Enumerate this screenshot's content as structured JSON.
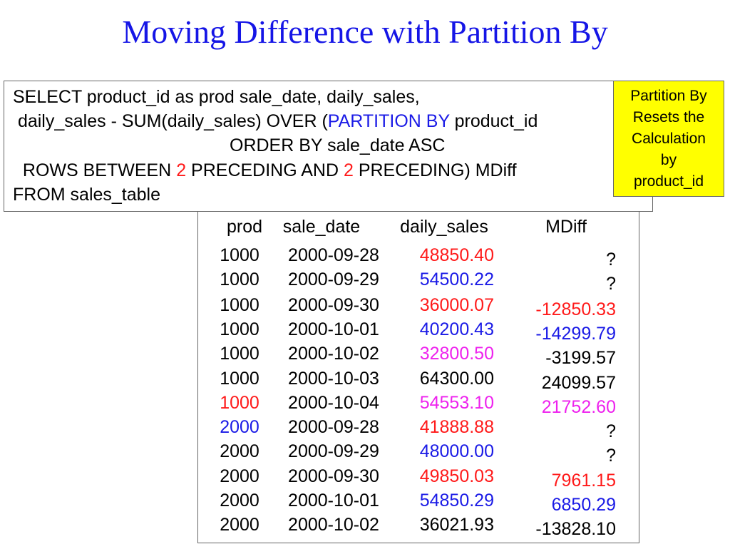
{
  "title": "Moving Difference with Partition By",
  "sql": {
    "line1": "SELECT product_id as prod sale_date, daily_sales,",
    "line2_a": " daily_sales - SUM(daily_sales) OVER (",
    "line2_b": "PARTITION BY",
    "line2_c": " product_id",
    "line3": "ORDER BY sale_date ASC",
    "line4_a": "  ROWS BETWEEN ",
    "line4_b": "2",
    "line4_c": " PRECEDING AND ",
    "line4_d": "2",
    "line4_e": " PRECEDING) MDiff",
    "line5": "FROM sales_table"
  },
  "note": {
    "lines": [
      "Partition By",
      "Resets the",
      "Calculation",
      "by",
      "product_id"
    ]
  },
  "colors": {
    "red": "#ff1a1a",
    "blue": "#1a1ae6",
    "magenta": "#ee22ee",
    "black": "#000000",
    "title_blue": "#1515e6",
    "note_yellow": "#ffff00"
  },
  "table": {
    "headers": [
      "prod",
      "sale_date",
      "daily_sales",
      "MDiff"
    ],
    "rows": [
      {
        "prod": "1000",
        "date": "2000-09-28",
        "sales": "48850.40",
        "mdiff": "?",
        "pc": "black",
        "sc": "red",
        "mc": "black"
      },
      {
        "prod": "1000",
        "date": "2000-09-29",
        "sales": "54500.22",
        "mdiff": "?",
        "pc": "black",
        "sc": "blue",
        "mc": "black"
      },
      {
        "prod": "1000",
        "date": "2000-09-30",
        "sales": "36000.07",
        "mdiff": "-12850.33",
        "pc": "black",
        "sc": "red",
        "mc": "red"
      },
      {
        "prod": "1000",
        "date": "2000-10-01",
        "sales": "40200.43",
        "mdiff": "-14299.79",
        "pc": "black",
        "sc": "blue",
        "mc": "blue"
      },
      {
        "prod": "1000",
        "date": "2000-10-02",
        "sales": "32800.50",
        "mdiff": "-3199.57",
        "pc": "black",
        "sc": "magenta",
        "mc": "black"
      },
      {
        "prod": "1000",
        "date": "2000-10-03",
        "sales": "64300.00",
        "mdiff": "24099.57",
        "pc": "black",
        "sc": "black",
        "mc": "black"
      },
      {
        "prod": "1000",
        "date": "2000-10-04",
        "sales": "54553.10",
        "mdiff": "21752.60",
        "pc": "red",
        "sc": "magenta",
        "mc": "magenta"
      },
      {
        "prod": "2000",
        "date": "2000-09-28",
        "sales": "41888.88",
        "mdiff": "?",
        "pc": "blue",
        "sc": "red",
        "mc": "black"
      },
      {
        "prod": "2000",
        "date": "2000-09-29",
        "sales": "48000.00",
        "mdiff": "?",
        "pc": "black",
        "sc": "blue",
        "mc": "black"
      },
      {
        "prod": "2000",
        "date": "2000-09-30",
        "sales": "49850.03",
        "mdiff": "7961.15",
        "pc": "black",
        "sc": "red",
        "mc": "red"
      },
      {
        "prod": "2000",
        "date": "2000-10-01",
        "sales": "54850.29",
        "mdiff": "6850.29",
        "pc": "black",
        "sc": "blue",
        "mc": "blue"
      },
      {
        "prod": "2000",
        "date": "2000-10-02",
        "sales": "36021.93",
        "mdiff": "-13828.10",
        "pc": "black",
        "sc": "black",
        "mc": "black"
      }
    ]
  }
}
